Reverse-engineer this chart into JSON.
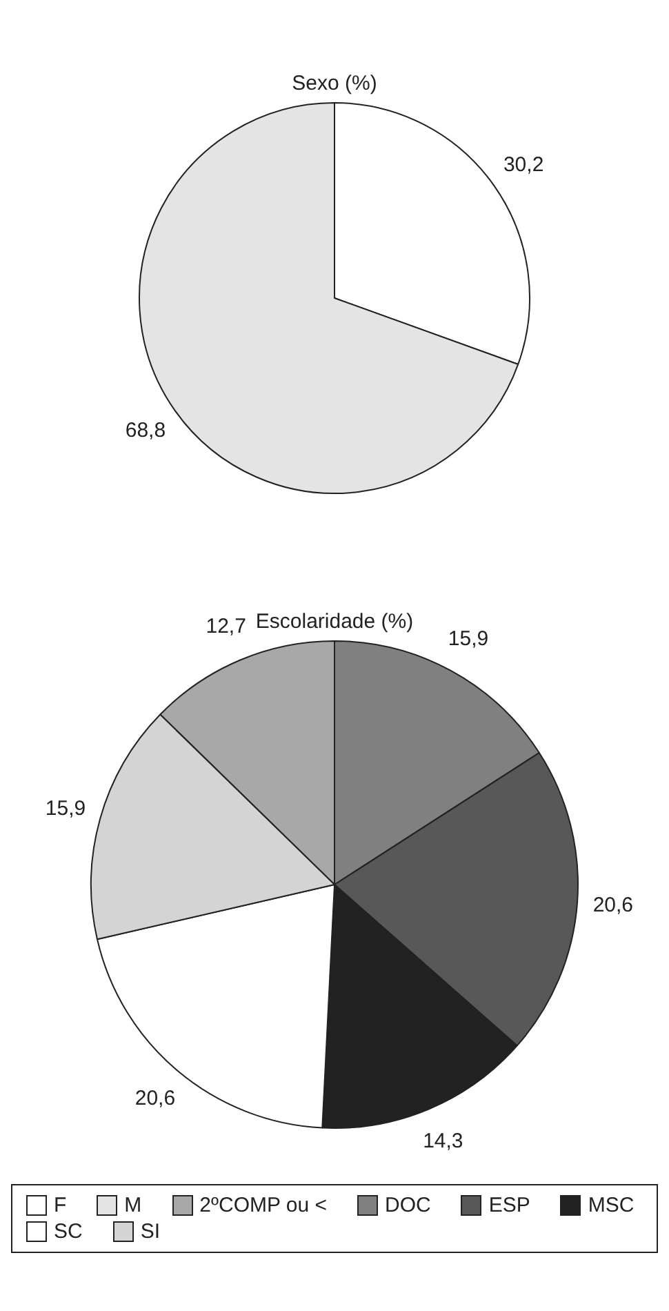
{
  "chart_data": [
    {
      "type": "pie",
      "title": "Sexo (%)",
      "categories": [
        "F",
        "M"
      ],
      "values": [
        30.2,
        68.8
      ],
      "colors": [
        "#ffffff",
        "#e4e4e4"
      ],
      "value_labels": [
        "30,2",
        "68,8"
      ],
      "legend": "bottom"
    },
    {
      "type": "pie",
      "title": "Escolaridade (%)",
      "categories": [
        "2ºCOMP ou <",
        "DOC",
        "ESP",
        "MSC",
        "SC",
        "SI"
      ],
      "values": [
        12.7,
        15.9,
        20.6,
        14.3,
        20.6,
        15.9
      ],
      "colors": [
        "#a8a8a8",
        "#808080",
        "#585858",
        "#222222",
        "#ffffff",
        "#d4d4d4"
      ],
      "value_labels": [
        "12,7",
        "15,9",
        "20,6",
        "14,3",
        "20,6",
        "15,9"
      ],
      "legend": "bottom"
    }
  ]
}
